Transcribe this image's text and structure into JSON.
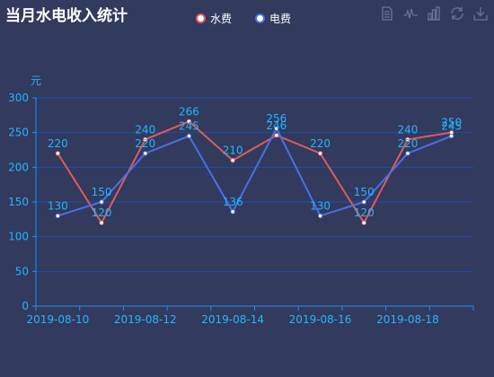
{
  "title": "当月水电收入统计",
  "colors": {
    "background": "#323a5e",
    "axis": "#1e90ff",
    "grid": "#1f4fa8",
    "label": "#23b6ff",
    "water": "#e05a5a",
    "electric": "#4a6fe8",
    "point": "#ffffff"
  },
  "toolbox": [
    "data-view-icon",
    "line-chart-icon",
    "bar-chart-icon",
    "refresh-icon",
    "download-icon"
  ],
  "chart_data": {
    "type": "line",
    "title": "当月水电收入统计",
    "ylabel": "元",
    "ylim": [
      0,
      300
    ],
    "yticks": [
      0,
      50,
      100,
      150,
      200,
      250,
      300
    ],
    "x": [
      "2019-08-10",
      "2019-08-11",
      "2019-08-12",
      "2019-08-13",
      "2019-08-14",
      "2019-08-15",
      "2019-08-16",
      "2019-08-17",
      "2019-08-18",
      "2019-08-19"
    ],
    "xtick_labels": [
      "2019-08-10",
      "2019-08-12",
      "2019-08-14",
      "2019-08-16",
      "2019-08-18"
    ],
    "legend_position": "top-center",
    "grid": true,
    "series": [
      {
        "name": "水费",
        "color": "#e05a5a",
        "values": [
          220,
          120,
          240,
          266,
          210,
          246,
          220,
          120,
          240,
          250
        ]
      },
      {
        "name": "电费",
        "color": "#4a6fe8",
        "values": [
          130,
          150,
          220,
          245,
          136,
          256,
          130,
          150,
          220,
          245
        ]
      }
    ]
  }
}
